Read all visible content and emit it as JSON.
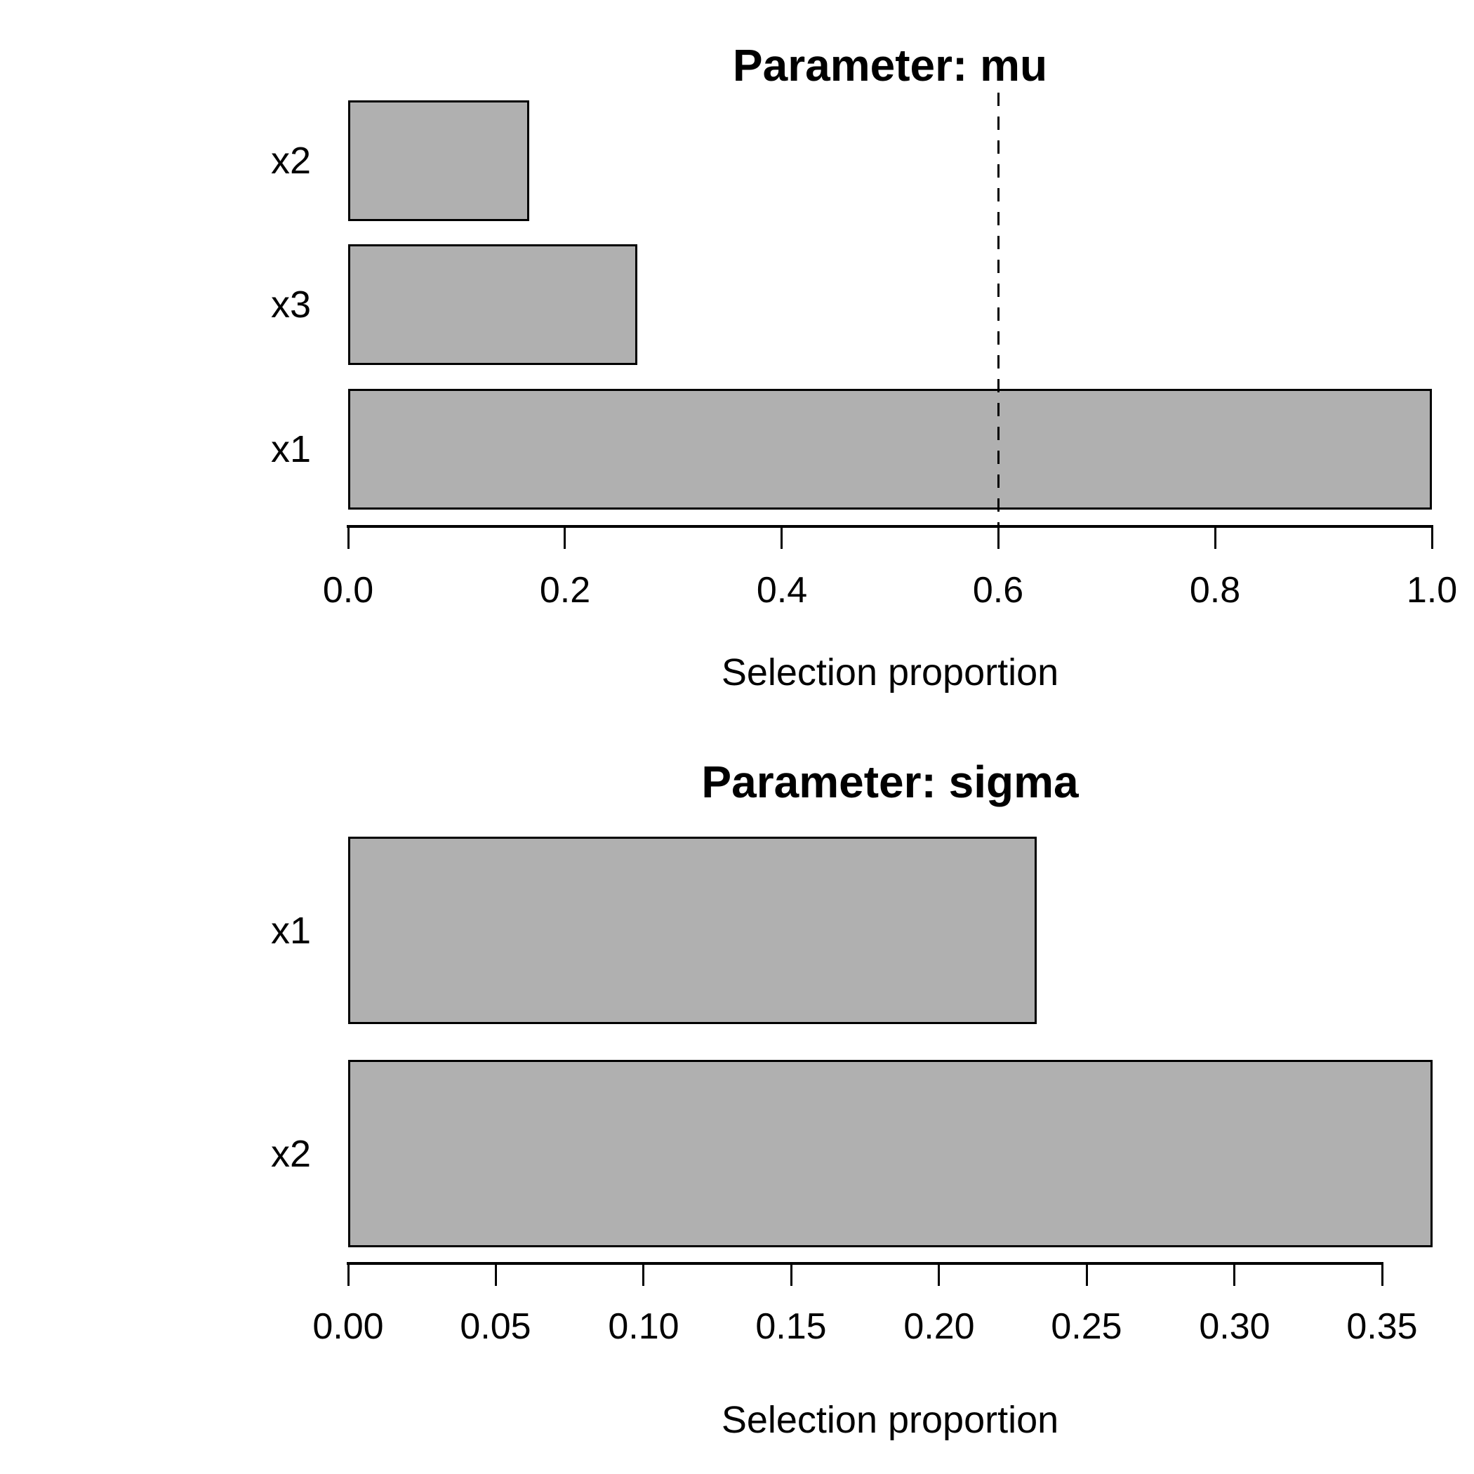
{
  "chart_data": [
    {
      "id": "mu",
      "type": "bar",
      "orientation": "horizontal",
      "title": "Parameter: mu",
      "xlabel": "Selection proportion",
      "categories": [
        "x2",
        "x3",
        "x1"
      ],
      "values": [
        0.167,
        0.267,
        1.0
      ],
      "axis_max": 1.0,
      "xlim": [
        0.0,
        1.0
      ],
      "xticks": [
        0.0,
        0.2,
        0.4,
        0.6,
        0.8,
        1.0
      ],
      "xtick_labels": [
        "0.0",
        "0.2",
        "0.4",
        "0.6",
        "0.8",
        "1.0"
      ],
      "threshold": 0.6,
      "threshold_style": "dashed",
      "grid": "off",
      "bar_fill": "#B0B0B0",
      "bar_border": "#000000"
    },
    {
      "id": "sigma",
      "type": "bar",
      "orientation": "horizontal",
      "title": "Parameter: sigma",
      "xlabel": "Selection proportion",
      "categories": [
        "x1",
        "x2"
      ],
      "values": [
        0.233,
        0.367
      ],
      "axis_max": 0.35,
      "xlim": [
        0.0,
        0.367
      ],
      "xticks": [
        0.0,
        0.05,
        0.1,
        0.15,
        0.2,
        0.25,
        0.3,
        0.35
      ],
      "xtick_labels": [
        "0.00",
        "0.05",
        "0.10",
        "0.15",
        "0.20",
        "0.25",
        "0.30",
        "0.35"
      ],
      "threshold": null,
      "threshold_style": null,
      "grid": "off",
      "bar_fill": "#B0B0B0",
      "bar_border": "#000000"
    }
  ]
}
